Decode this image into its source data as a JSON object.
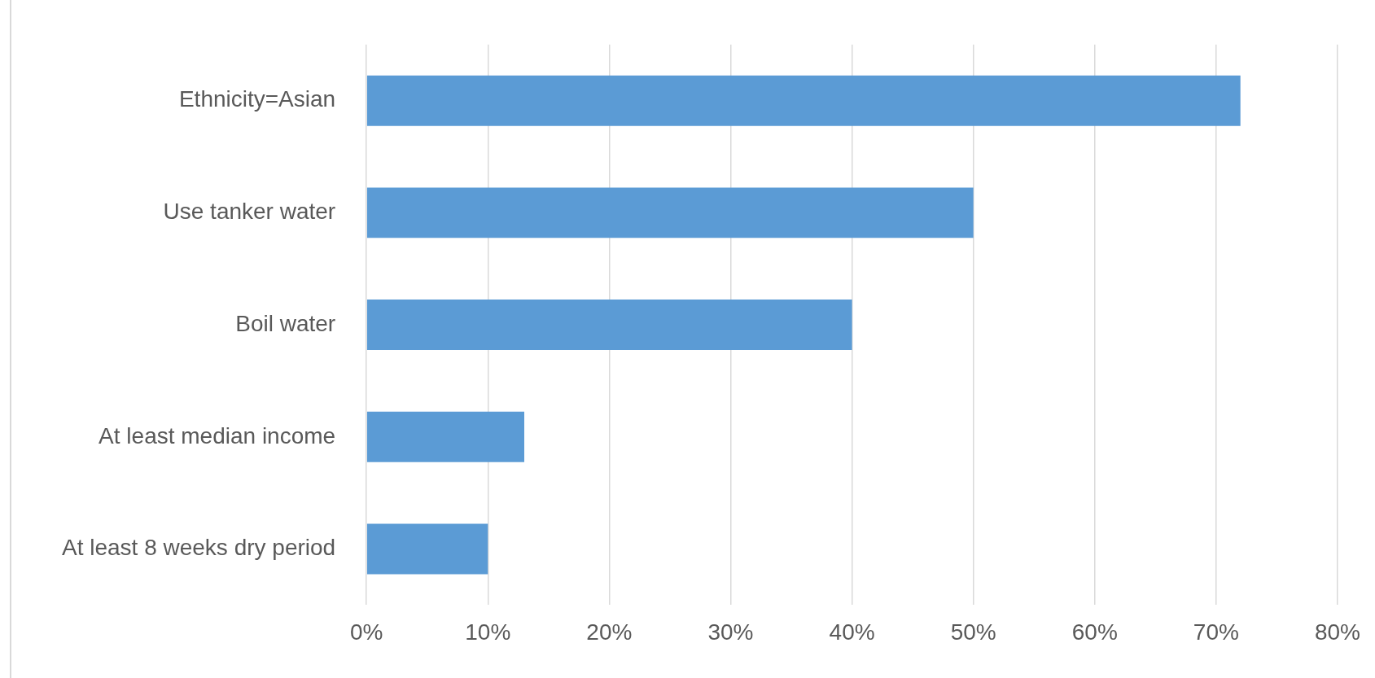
{
  "chart_data": {
    "type": "bar",
    "orientation": "horizontal",
    "categories": [
      "Ethnicity=Asian",
      "Use tanker water",
      "Boil water",
      "At least median income",
      "At least 8 weeks dry period"
    ],
    "values": [
      72,
      50,
      40,
      13,
      10
    ],
    "color": "#5b9bd5",
    "xlim": [
      0,
      80
    ],
    "xticks": [
      {
        "value": 0,
        "label": "0%"
      },
      {
        "value": 10,
        "label": "10%"
      },
      {
        "value": 20,
        "label": "20%"
      },
      {
        "value": 30,
        "label": "30%"
      },
      {
        "value": 40,
        "label": "40%"
      },
      {
        "value": 50,
        "label": "50%"
      },
      {
        "value": 60,
        "label": "60%"
      },
      {
        "value": 70,
        "label": "70%"
      },
      {
        "value": 80,
        "label": "80%"
      }
    ],
    "grid": "x",
    "legend": false
  }
}
